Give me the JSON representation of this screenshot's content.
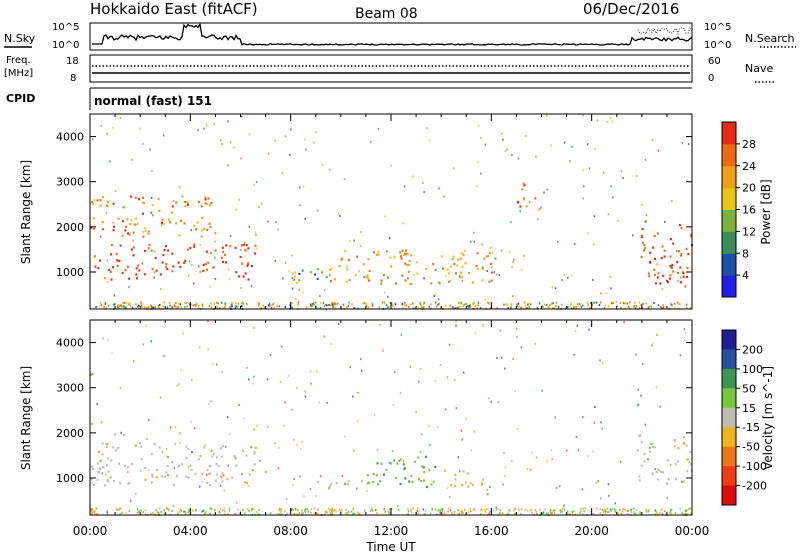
{
  "header": {
    "station": "Hokkaido East (fitACF)",
    "beam": "Beam 08",
    "date": "06/Dec/2016"
  },
  "noise_panel": {
    "left_label": "N.Sky",
    "right_label": "N.Search",
    "ytick_top": "10^5",
    "ytick_bottom": "10^0"
  },
  "freq_panel": {
    "left_label_1": "Freq.",
    "left_label_2": "[MHz]",
    "left_ticks": [
      "18",
      "8"
    ],
    "right_label": "Nave",
    "right_ticks": [
      "60",
      "0"
    ]
  },
  "cpid": {
    "label": "CPID",
    "value": "normal (fast) 151"
  },
  "colors": {
    "power_scale": [
      "#1f1fe6",
      "#1e4fa6",
      "#3c8c5a",
      "#78b43c",
      "#e6c814",
      "#f0a014",
      "#f06a14",
      "#e62814"
    ],
    "velocity_scale": [
      "#dc0a0a",
      "#f03c14",
      "#f07814",
      "#f0b41e",
      "#bebeb4",
      "#78c83c",
      "#3c9650",
      "#2850a0",
      "#1e1e96"
    ],
    "background": "#ffffff"
  },
  "chart_data": [
    {
      "type": "heatmap",
      "title": "Power",
      "xlabel": "",
      "ylabel": "Slant Range [km]",
      "colorbar_label": "Power [dB]",
      "colorbar_ticks": [
        "4",
        "8",
        "12",
        "16",
        "20",
        "24",
        "28"
      ],
      "xlim": [
        0,
        24
      ],
      "ylim": [
        180,
        4500
      ],
      "xticks": [
        "00:00",
        "04:00",
        "08:00",
        "12:00",
        "16:00",
        "20:00",
        "00:00"
      ],
      "yticks": [
        1000,
        2000,
        3000,
        4000
      ],
      "regions": [
        {
          "t": [
            0.0,
            6.6
          ],
          "r": [
            850,
            1650
          ],
          "power": 28
        },
        {
          "t": [
            0.0,
            5.0
          ],
          "r": [
            1800,
            2700
          ],
          "power": 22
        },
        {
          "t": [
            9.0,
            16.2
          ],
          "r": [
            750,
            1500
          ],
          "power": 20
        },
        {
          "t": [
            17.0,
            18.0
          ],
          "r": [
            2400,
            3000
          ],
          "power": 26
        },
        {
          "t": [
            21.8,
            24.0
          ],
          "r": [
            700,
            2200
          ],
          "power": 28
        },
        {
          "t": [
            8.0,
            9.5
          ],
          "r": [
            700,
            1100
          ],
          "power": 12
        }
      ]
    },
    {
      "type": "heatmap",
      "title": "Velocity",
      "xlabel": "Time UT",
      "ylabel": "Slant Range [km]",
      "colorbar_label": "Velocity [m s^-1]",
      "colorbar_ticks": [
        "200",
        "100",
        "50",
        "15",
        "-15",
        "-50",
        "-100",
        "-200"
      ],
      "xlim": [
        0,
        24
      ],
      "ylim": [
        180,
        4500
      ],
      "xticks": [
        "00:00",
        "04:00",
        "08:00",
        "12:00",
        "16:00",
        "20:00",
        "00:00"
      ],
      "yticks": [
        1000,
        2000,
        3000,
        4000
      ],
      "regions": [
        {
          "t": [
            0.0,
            6.6
          ],
          "r": [
            850,
            1800
          ],
          "velocity": 0
        },
        {
          "t": [
            11.0,
            14.0
          ],
          "r": [
            800,
            1500
          ],
          "velocity": 60
        },
        {
          "t": [
            14.0,
            16.0
          ],
          "r": [
            800,
            1200
          ],
          "velocity": -40
        },
        {
          "t": [
            9.0,
            11.0
          ],
          "r": [
            700,
            1000
          ],
          "velocity": 0
        },
        {
          "t": [
            21.8,
            24.0
          ],
          "r": [
            900,
            2000
          ],
          "velocity": 0
        }
      ]
    }
  ]
}
